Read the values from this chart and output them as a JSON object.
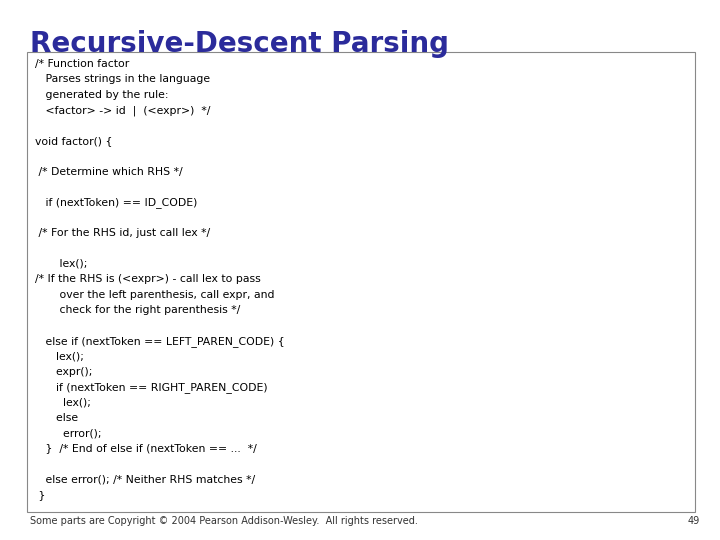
{
  "title": "Recursive-Descent Parsing",
  "title_color": "#2B2B9B",
  "title_fontsize": 20,
  "title_bold": true,
  "bg_color": "#FFFFFF",
  "box_bg": "#FFFFFF",
  "box_border": "#888888",
  "code_color": "#000000",
  "code_fontsize": 7.8,
  "footer_text": "Some parts are Copyright © 2004 Pearson Addison-Wesley.  All rights reserved.",
  "footer_page": "49",
  "code_lines": [
    "/* Function factor",
    "   Parses strings in the language",
    "   generated by the rule:",
    "   <factor> -> id  |  (<expr>)  */",
    "",
    "void factor() {",
    "",
    " /* Determine which RHS */",
    "",
    "   if (nextToken) == ID_CODE)",
    "",
    " /* For the RHS id, just call lex */",
    "",
    "       lex();",
    "/* If the RHS is (<expr>) - call lex to pass",
    "       over the left parenthesis, call expr, and",
    "       check for the right parenthesis */",
    "",
    "   else if (nextToken == LEFT_PAREN_CODE) {",
    "      lex();",
    "      expr();",
    "      if (nextToken == RIGHT_PAREN_CODE)",
    "        lex();",
    "      else",
    "        error();",
    "   }  /* End of else if (nextToken == ...  */",
    "",
    "   else error(); /* Neither RHS matches */",
    " }"
  ]
}
